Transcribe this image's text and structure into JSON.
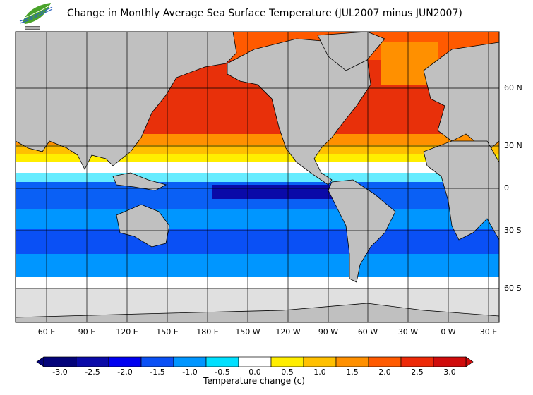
{
  "title": "Change in Monthly Average Sea Surface Temperature (JUL2007 minus JUN2007)",
  "logo": {
    "icon": "leaf-wave-logo"
  },
  "map": {
    "lon_labels": [
      "60 E",
      "90 E",
      "120 E",
      "150 E",
      "180 E",
      "150 W",
      "120 W",
      "90 W",
      "60 W",
      "30 W",
      "0 W",
      "30 E"
    ],
    "lat_labels": [
      "60 N",
      "30 N",
      "0",
      "30 S",
      "60 S"
    ],
    "land_color": "#c0c0c0",
    "ice_color": "#e0e0e0"
  },
  "colorbar": {
    "title": "Temperature change  (c)",
    "labels": [
      "-3.0",
      "-2.5",
      "-2.0",
      "-1.5",
      "-1.0",
      "-0.5",
      "0.0",
      "0.5",
      "1.0",
      "1.5",
      "2.0",
      "2.5",
      "3.0"
    ],
    "colors": [
      "#03037a",
      "#0a0aa8",
      "#0000f0",
      "#0a50f5",
      "#0096ff",
      "#00e0ff",
      "#ffffff",
      "#ffee00",
      "#ffc000",
      "#ff9000",
      "#ff5a00",
      "#ee2a08",
      "#d00c0c"
    ]
  }
}
